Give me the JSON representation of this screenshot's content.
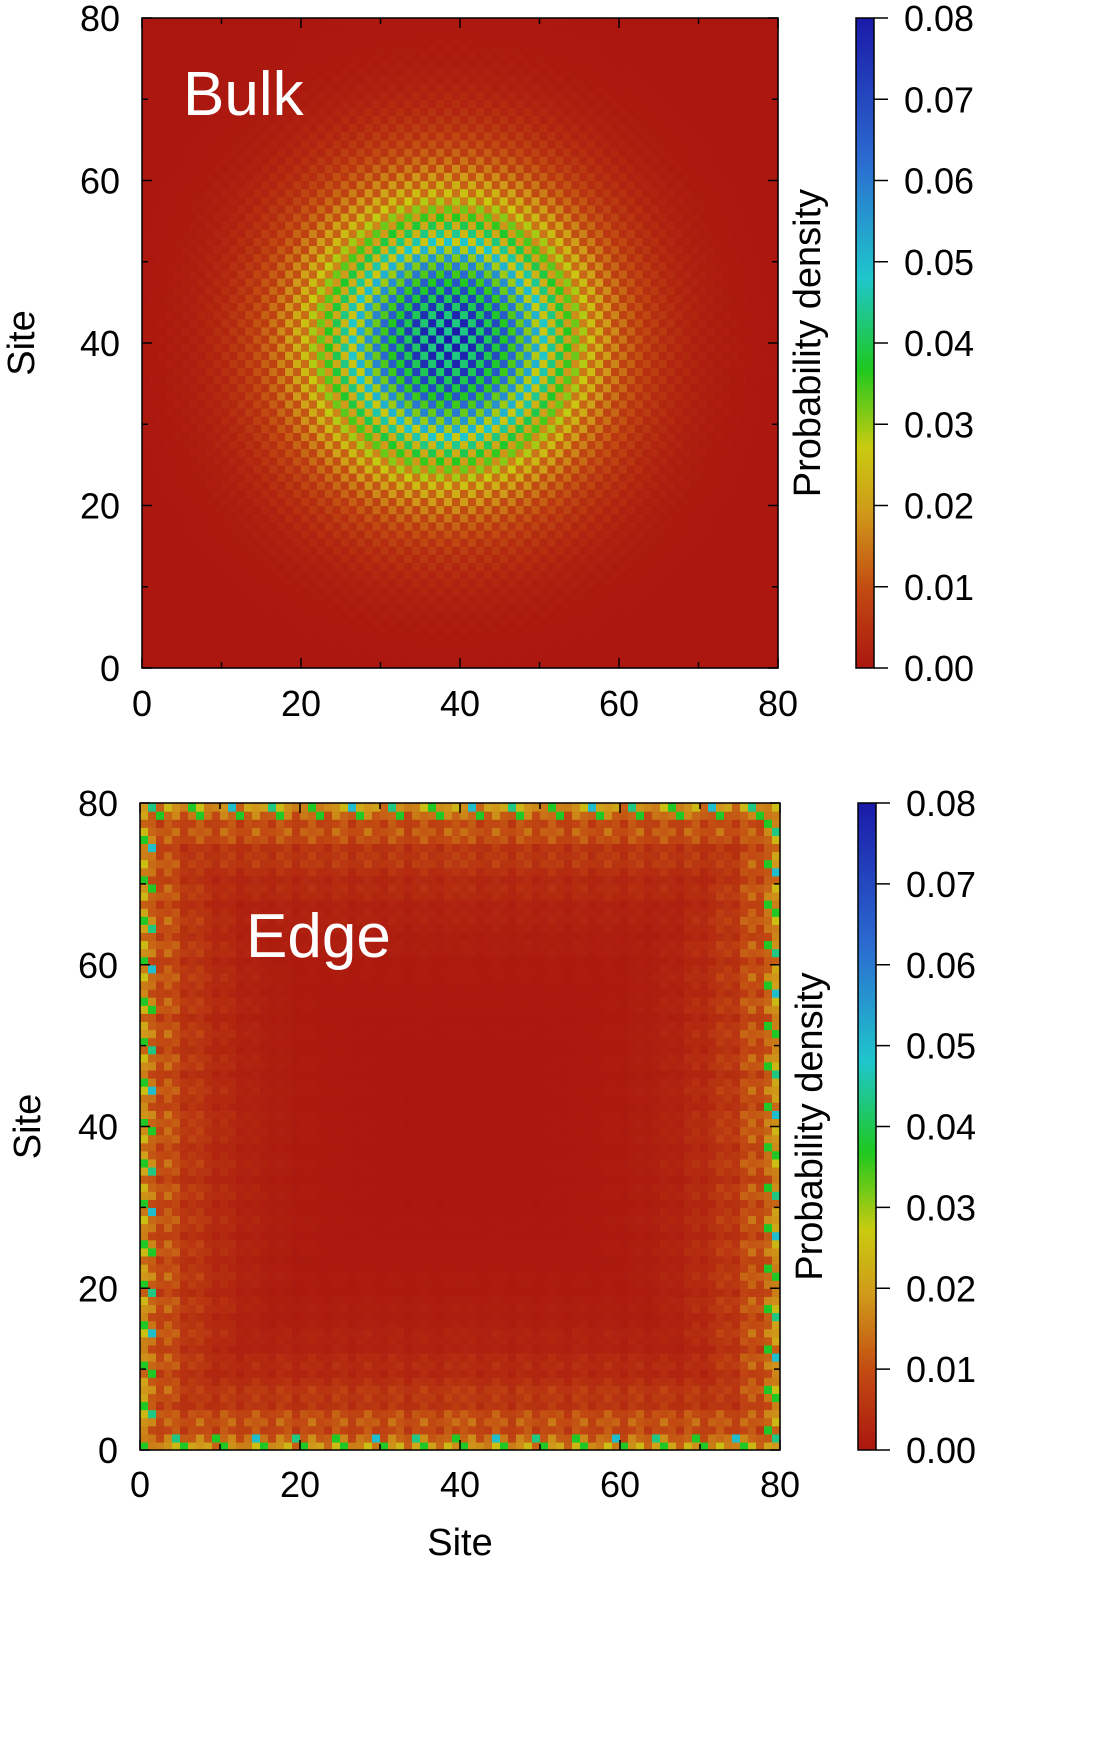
{
  "chart_data": [
    {
      "type": "heatmap",
      "panel_label": "Bulk",
      "pattern": "bulk",
      "grid_size": 80,
      "x_ticks": [
        0,
        20,
        40,
        60,
        80
      ],
      "y_ticks": [
        0,
        20,
        40,
        60,
        80
      ],
      "x_tick_labels": [
        "0",
        "20",
        "40",
        "60",
        "80"
      ],
      "y_tick_labels": [
        "0",
        "20",
        "40",
        "60",
        "80"
      ],
      "xlim": [
        0,
        80
      ],
      "ylim": [
        0,
        80
      ],
      "xlabel": "",
      "ylabel": "Site",
      "peak_site": [
        38,
        40
      ],
      "peak_value": 0.08,
      "colorbar": {
        "label": "Probability density",
        "range": [
          0.0,
          0.08
        ],
        "ticks": [
          0.0,
          0.01,
          0.02,
          0.03,
          0.04,
          0.05,
          0.06,
          0.07,
          0.08
        ],
        "tick_labels": [
          "0.00",
          "0.01",
          "0.02",
          "0.03",
          "0.04",
          "0.05",
          "0.06",
          "0.07",
          "0.08"
        ]
      }
    },
    {
      "type": "heatmap",
      "panel_label": "Edge",
      "pattern": "edge",
      "grid_size": 80,
      "x_ticks": [
        0,
        20,
        40,
        60,
        80
      ],
      "y_ticks": [
        0,
        20,
        40,
        60,
        80
      ],
      "x_tick_labels": [
        "0",
        "20",
        "40",
        "60",
        "80"
      ],
      "y_tick_labels": [
        "0",
        "20",
        "40",
        "60",
        "80"
      ],
      "xlim": [
        0,
        80
      ],
      "ylim": [
        0,
        80
      ],
      "xlabel": "Site",
      "ylabel": "Site",
      "peak_value": 0.06,
      "colorbar": {
        "label": "Probability density",
        "range": [
          0.0,
          0.08
        ],
        "ticks": [
          0.0,
          0.01,
          0.02,
          0.03,
          0.04,
          0.05,
          0.06,
          0.07,
          0.08
        ],
        "tick_labels": [
          "0.00",
          "0.01",
          "0.02",
          "0.03",
          "0.04",
          "0.05",
          "0.06",
          "0.07",
          "0.08"
        ]
      }
    }
  ],
  "colormap": {
    "stops": [
      [
        0.0,
        "#ab170f"
      ],
      [
        0.12,
        "#c24a12"
      ],
      [
        0.24,
        "#d09a1a"
      ],
      [
        0.34,
        "#c9cb10"
      ],
      [
        0.46,
        "#1fc81f"
      ],
      [
        0.6,
        "#1fc6cc"
      ],
      [
        0.78,
        "#2b6bd0"
      ],
      [
        1.0,
        "#1a1aa8"
      ]
    ]
  }
}
